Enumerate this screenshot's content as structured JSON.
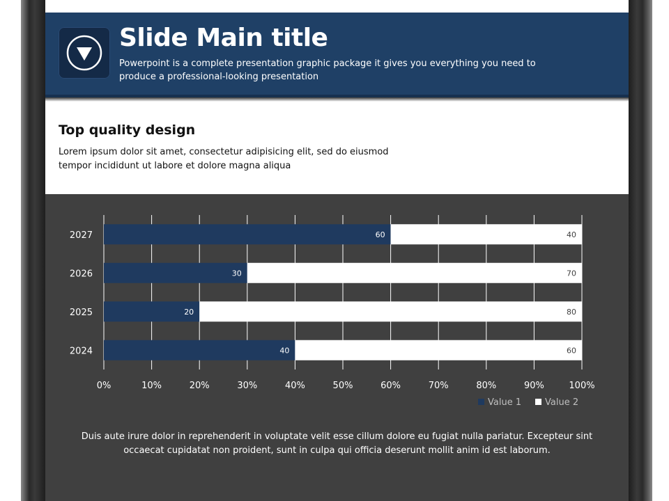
{
  "header": {
    "title": "Slide Main title",
    "subtitle": "Powerpoint is a complete presentation graphic package it gives you everything you need to produce a professional-looking presentation",
    "logo_icon": "down-arrow-circle-icon"
  },
  "section": {
    "title": "Top quality design",
    "text": "Lorem ipsum dolor sit amet, consectetur adipisicing elit, sed do eiusmod tempor incididunt ut labore et dolore magna aliqua"
  },
  "footer": {
    "text": "Duis aute irure dolor in reprehenderit in voluptate velit esse cillum dolore eu fugiat nulla pariatur. Excepteur sint occaecat cupidatat non proident, sunt in culpa qui officia deserunt mollit anim id est laborum."
  },
  "colors": {
    "header": "#1f4066",
    "screen": "#404040",
    "value1": "#1f3a5f",
    "value2": "#ffffff"
  },
  "chart_data": {
    "type": "bar",
    "orientation": "horizontal",
    "stacked": "percent",
    "categories": [
      "2027",
      "2026",
      "2025",
      "2024"
    ],
    "series": [
      {
        "name": "Value 1",
        "values": [
          60,
          30,
          20,
          40
        ],
        "color": "#1f3a5f"
      },
      {
        "name": "Value 2",
        "values": [
          40,
          70,
          80,
          60
        ],
        "color": "#ffffff"
      }
    ],
    "x_ticks": [
      "0%",
      "10%",
      "20%",
      "30%",
      "40%",
      "50%",
      "60%",
      "70%",
      "80%",
      "90%",
      "100%"
    ],
    "xlim": [
      0,
      100
    ],
    "grid": true,
    "legend_position": "bottom-right",
    "title": "",
    "xlabel": "",
    "ylabel": ""
  }
}
